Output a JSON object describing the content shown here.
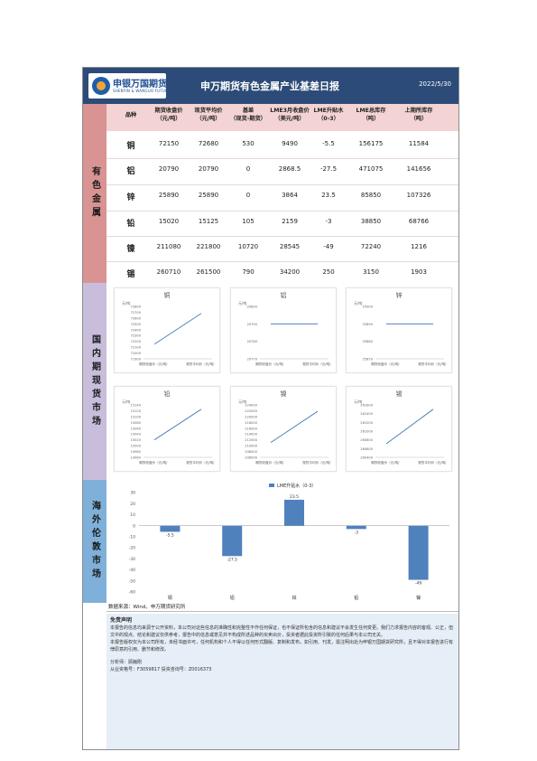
{
  "header": {
    "logo_cn": "申银万国期货",
    "logo_en": "SHENYIN & WANGUO FUTURES",
    "title": "申万期货有色金属产业基差日报",
    "date": "2022/5/30"
  },
  "sections": {
    "nonferrous": "有色金属",
    "domestic": "国内期现货市场",
    "overseas": "海外伦敦市场"
  },
  "table": {
    "headers": [
      "品种",
      "期货收盘价（元/吨）",
      "现货平均价（元/吨）",
      "基差（现货-期货）",
      "LME3月收盘价（美元/吨）",
      "LME升贴水（0-3）",
      "LME总库存（吨）",
      "上期所库存（吨）"
    ],
    "header_lines": [
      [
        "品种"
      ],
      [
        "期货收盘价",
        "（元/吨）"
      ],
      [
        "现货平均价",
        "（元/吨）"
      ],
      [
        "基差",
        "（现货-期货）"
      ],
      [
        "LME3月收盘价",
        "（美元/吨）"
      ],
      [
        "LME升贴水",
        "（0-3）"
      ],
      [
        "LME总库存",
        "（吨）"
      ],
      [
        "上期所库存",
        "（吨）"
      ]
    ],
    "rows": [
      [
        "铜",
        "72150",
        "72680",
        "530",
        "9490",
        "-5.5",
        "156175",
        "11584"
      ],
      [
        "铝",
        "20790",
        "20790",
        "0",
        "2868.5",
        "-27.5",
        "471075",
        "141656"
      ],
      [
        "锌",
        "25890",
        "25890",
        "0",
        "3864",
        "23.5",
        "85850",
        "107326"
      ],
      [
        "铅",
        "15020",
        "15125",
        "105",
        "2159",
        "-3",
        "38850",
        "68766"
      ],
      [
        "镍",
        "211080",
        "221800",
        "10720",
        "28545",
        "-49",
        "72240",
        "1216"
      ],
      [
        "锡",
        "260710",
        "261500",
        "790",
        "34200",
        "250",
        "3150",
        "1903"
      ]
    ]
  },
  "mini_charts": [
    {
      "title": "铜",
      "unit": "元/吨",
      "ticks": [
        "72800",
        "72700",
        "72600",
        "72500",
        "72400",
        "72300",
        "72200",
        "72100",
        "72000",
        "71900"
      ],
      "x_labels": [
        "期货收盘价（元/吨）",
        "现货平均价（元/吨）"
      ],
      "values": [
        72150,
        72680
      ],
      "ylim": [
        71900,
        72800
      ]
    },
    {
      "title": "铝",
      "unit": "元/吨",
      "ticks": [
        "20800",
        "20790",
        "20780",
        "20770"
      ],
      "x_labels": [
        "期货收盘价（元/吨）",
        "现货平均价（元/吨）"
      ],
      "values": [
        20790,
        20790
      ],
      "ylim": [
        20770,
        20800
      ]
    },
    {
      "title": "锌",
      "unit": "元/吨",
      "ticks": [
        "25900",
        "25890",
        "25880",
        "25870"
      ],
      "x_labels": [
        "期货收盘价（元/吨）",
        "现货平均价（元/吨）"
      ],
      "values": [
        25890,
        25890
      ],
      "ylim": [
        25870,
        25900
      ]
    },
    {
      "title": "铅",
      "unit": "元/吨",
      "ticks": [
        "15140",
        "15120",
        "15100",
        "15080",
        "15060",
        "15040",
        "15020",
        "15000",
        "14980",
        "14960"
      ],
      "x_labels": [
        "期货收盘价（元/吨）",
        "现货平均价（元/吨）"
      ],
      "values": [
        15020,
        15125
      ],
      "ylim": [
        14960,
        15140
      ]
    },
    {
      "title": "镍",
      "unit": "元/吨",
      "ticks": [
        "224000",
        "222000",
        "220000",
        "218000",
        "216000",
        "214000",
        "212000",
        "210000",
        "208000",
        "206000"
      ],
      "x_labels": [
        "期货收盘价（元/吨）",
        "现货平均价（元/吨）"
      ],
      "values": [
        211080,
        221800
      ],
      "ylim": [
        206000,
        224000
      ]
    },
    {
      "title": "锡",
      "unit": "元/吨",
      "ticks": [
        "261600",
        "261400",
        "261200",
        "261000",
        "260800",
        "260600",
        "260400"
      ],
      "x_labels": [
        "期货收盘价（元/吨）",
        "现货平均价（元/吨）"
      ],
      "values": [
        260710,
        261500
      ],
      "ylim": [
        260400,
        261600
      ]
    }
  ],
  "chart_data": {
    "type": "bar",
    "title": "",
    "legend": "LME升贴水（0-3）",
    "categories": [
      "铜",
      "铝",
      "锌",
      "铅",
      "镍"
    ],
    "values": [
      -5.5,
      -27.5,
      23.5,
      -3,
      -49
    ],
    "value_labels": [
      "-5.5",
      "-27.5",
      "23.5",
      "-3",
      "-49"
    ],
    "y_ticks": [
      "30",
      "20",
      "10",
      "0",
      "-10",
      "-20",
      "-30",
      "-40",
      "-50",
      "-60"
    ],
    "ylim": [
      -60,
      30
    ],
    "color": "#4f81bd"
  },
  "footer": {
    "source": "数据来源：Wind，申万期货研究所",
    "disclaimer_title": "免责声明",
    "disclaimer_1": "本报告的信息均来源于公开资料，本公司对这些信息的准确性和完整性不作任何保证，也不保证所包含的信息和建议不会发生任何变更。我们力求报告内容的客观、公正，但文中的观点、结论和建议仅供参考，报告中的信息或意见并不构成所述品种的买卖出价，投资者据此投资所引致的任何后果与本公司无关。",
    "disclaimer_2": "本报告版权仅为本公司所有，未经书面许可，任何机构和个人不得以任何形式翻版、复制和发布。如引用、刊发，需注明出处为申银万国期货研究所，且不得对本报告进行有悖原意的引用、删节和修改。",
    "analyst": "分析师：顾巍刚",
    "license": "从业资格号：F3059817  投资咨询号：Z0016373"
  }
}
